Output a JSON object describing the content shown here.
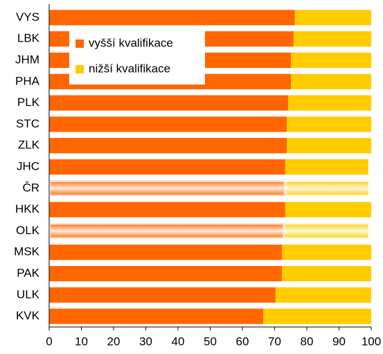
{
  "chart_data": {
    "type": "stacked_barh",
    "categories": [
      "VYS",
      "LBK",
      "JHM",
      "PHA",
      "PLK",
      "STC",
      "ZLK",
      "JHC",
      "ČR",
      "HKK",
      "OLK",
      "MSK",
      "PAK",
      "ULK",
      "KVK"
    ],
    "series": [
      {
        "name": "vyšší kvalifikace",
        "color": "#ff6600",
        "values": [
          76.3,
          75.9,
          75.1,
          75.1,
          74.2,
          73.8,
          73.8,
          73.3,
          73.3,
          73.3,
          72.9,
          72.3,
          72.3,
          70.3,
          66.5
        ]
      },
      {
        "name": "nižší kvalifikace",
        "color": "#ffcc00",
        "values": [
          23.7,
          24.1,
          24.9,
          24.9,
          25.8,
          26.2,
          26.2,
          25.8,
          26.1,
          26.7,
          26.5,
          27.7,
          27.7,
          29.7,
          33.5
        ]
      }
    ],
    "highlight": [
      "ČR",
      "OLK"
    ],
    "xlim": [
      0,
      100
    ],
    "xticks": [
      0,
      10,
      20,
      30,
      40,
      50,
      60,
      70,
      80,
      90,
      100
    ],
    "legend": "upper left"
  }
}
